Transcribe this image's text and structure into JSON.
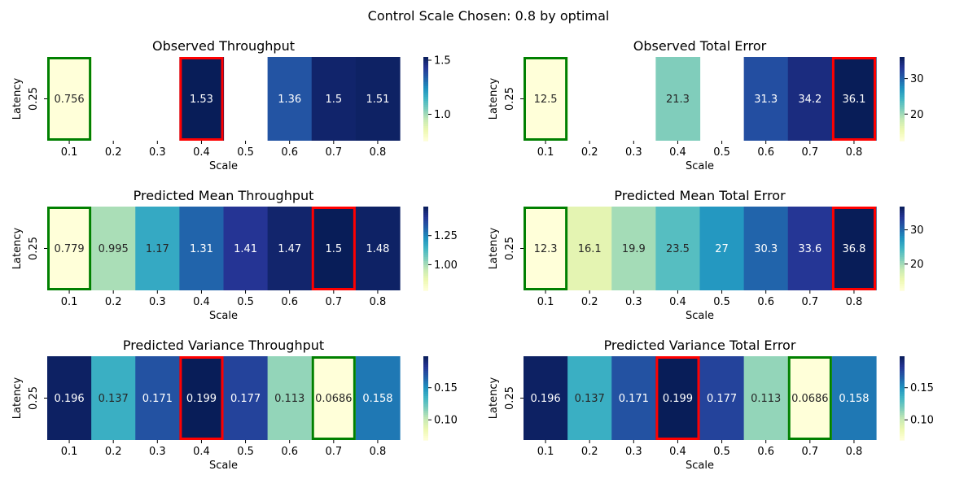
{
  "suptitle": "Control Scale Chosen: 0.8 by optimal",
  "chart_data": [
    {
      "type": "heatmap",
      "title": "Observed Throughput",
      "xlabel": "Scale",
      "ylabel": "Latency",
      "x": [
        "0.1",
        "0.2",
        "0.3",
        "0.4",
        "0.5",
        "0.6",
        "0.7",
        "0.8"
      ],
      "y": [
        "0.25"
      ],
      "values": [
        0.756,
        null,
        null,
        1.53,
        null,
        1.36,
        1.5,
        1.51
      ],
      "labels": [
        "0.756",
        "",
        "",
        "1.53",
        "",
        "1.36",
        "1.5",
        "1.51"
      ],
      "colormap": "YlGnBu",
      "vmin": 0.756,
      "vmax": 1.53,
      "colorbar_ticks": [
        1.0,
        1.5
      ],
      "colorbar_labels": [
        "1.0",
        "1.5"
      ],
      "highlight_green": 0,
      "highlight_red": 3
    },
    {
      "type": "heatmap",
      "title": "Observed Total Error",
      "xlabel": "Scale",
      "ylabel": "Latency",
      "x": [
        "0.1",
        "0.2",
        "0.3",
        "0.4",
        "0.5",
        "0.6",
        "0.7",
        "0.8"
      ],
      "y": [
        "0.25"
      ],
      "values": [
        12.5,
        null,
        null,
        21.3,
        null,
        31.3,
        34.2,
        36.1
      ],
      "labels": [
        "12.5",
        "",
        "",
        "21.3",
        "",
        "31.3",
        "34.2",
        "36.1"
      ],
      "colormap": "YlGnBu",
      "vmin": 12.5,
      "vmax": 36.1,
      "colorbar_ticks": [
        20,
        30
      ],
      "colorbar_labels": [
        "20",
        "30"
      ],
      "highlight_green": 0,
      "highlight_red": 7
    },
    {
      "type": "heatmap",
      "title": "Predicted Mean Throughput",
      "xlabel": "Scale",
      "ylabel": "Latency",
      "x": [
        "0.1",
        "0.2",
        "0.3",
        "0.4",
        "0.5",
        "0.6",
        "0.7",
        "0.8"
      ],
      "y": [
        "0.25"
      ],
      "values": [
        0.779,
        0.995,
        1.17,
        1.31,
        1.41,
        1.47,
        1.5,
        1.48
      ],
      "labels": [
        "0.779",
        "0.995",
        "1.17",
        "1.31",
        "1.41",
        "1.47",
        "1.5",
        "1.48"
      ],
      "colormap": "YlGnBu",
      "vmin": 0.779,
      "vmax": 1.5,
      "colorbar_ticks": [
        1.0,
        1.25
      ],
      "colorbar_labels": [
        "1.00",
        "1.25"
      ],
      "highlight_green": 0,
      "highlight_red": 6
    },
    {
      "type": "heatmap",
      "title": "Predicted Mean Total Error",
      "xlabel": "Scale",
      "ylabel": "Latency",
      "x": [
        "0.1",
        "0.2",
        "0.3",
        "0.4",
        "0.5",
        "0.6",
        "0.7",
        "0.8"
      ],
      "y": [
        "0.25"
      ],
      "values": [
        12.3,
        16.1,
        19.9,
        23.5,
        27,
        30.3,
        33.6,
        36.8
      ],
      "labels": [
        "12.3",
        "16.1",
        "19.9",
        "23.5",
        "27",
        "30.3",
        "33.6",
        "36.8"
      ],
      "colormap": "YlGnBu",
      "vmin": 12.3,
      "vmax": 36.8,
      "colorbar_ticks": [
        20,
        30
      ],
      "colorbar_labels": [
        "20",
        "30"
      ],
      "highlight_green": 0,
      "highlight_red": 7
    },
    {
      "type": "heatmap",
      "title": "Predicted Variance Throughput",
      "xlabel": "Scale",
      "ylabel": "Latency",
      "x": [
        "0.1",
        "0.2",
        "0.3",
        "0.4",
        "0.5",
        "0.6",
        "0.7",
        "0.8"
      ],
      "y": [
        "0.25"
      ],
      "values": [
        0.196,
        0.137,
        0.171,
        0.199,
        0.177,
        0.113,
        0.0686,
        0.158
      ],
      "labels": [
        "0.196",
        "0.137",
        "0.171",
        "0.199",
        "0.177",
        "0.113",
        "0.0686",
        "0.158"
      ],
      "colormap": "YlGnBu",
      "vmin": 0.0686,
      "vmax": 0.199,
      "colorbar_ticks": [
        0.1,
        0.15
      ],
      "colorbar_labels": [
        "0.10",
        "0.15"
      ],
      "highlight_green": 6,
      "highlight_red": 3
    },
    {
      "type": "heatmap",
      "title": "Predicted Variance Total Error",
      "xlabel": "Scale",
      "ylabel": "Latency",
      "x": [
        "0.1",
        "0.2",
        "0.3",
        "0.4",
        "0.5",
        "0.6",
        "0.7",
        "0.8"
      ],
      "y": [
        "0.25"
      ],
      "values": [
        0.196,
        0.137,
        0.171,
        0.199,
        0.177,
        0.113,
        0.0686,
        0.158
      ],
      "labels": [
        "0.196",
        "0.137",
        "0.171",
        "0.199",
        "0.177",
        "0.113",
        "0.0686",
        "0.158"
      ],
      "colormap": "YlGnBu",
      "vmin": 0.0686,
      "vmax": 0.199,
      "colorbar_ticks": [
        0.1,
        0.15
      ],
      "colorbar_labels": [
        "0.10",
        "0.15"
      ],
      "highlight_green": 6,
      "highlight_red": 3
    }
  ]
}
